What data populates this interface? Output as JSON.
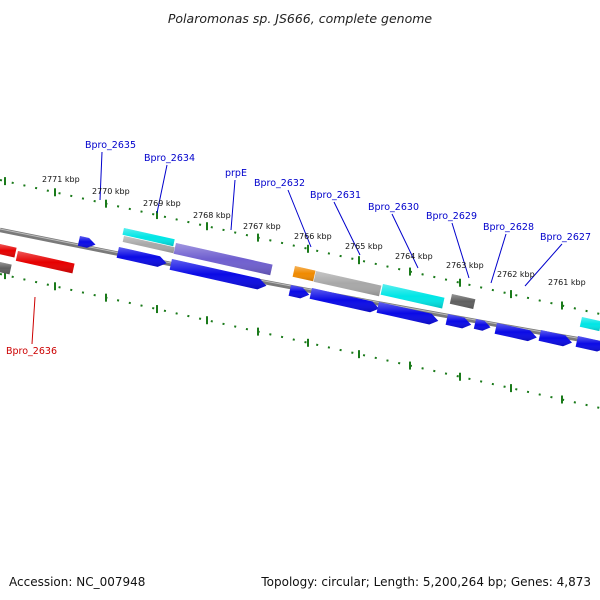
{
  "map": {
    "title": "Polaromonas sp. JS666, complete genome",
    "accession_text": "Accession: NC_007948",
    "summary_text": "Topology: circular; Length: 5,200,264 bp; Genes: 4,873",
    "colors": {
      "label_blue": "#0000cc",
      "label_red": "#cc0000",
      "backbone": "#7f7f7f",
      "tick_green": "#1a7a1a",
      "gene_blue": "#0a0ae6",
      "gene_red": "#e60000",
      "gene_cyan": "#00e6e6",
      "gene_gray": "#a8a8a8",
      "gene_dark_gray": "#5f5f5f",
      "gene_purple": "#6f5fcf",
      "gene_orange": "#f08a00"
    },
    "tick_labels": [
      "2771 kbp",
      "2770 kbp",
      "2769 kbp",
      "2768 kbp",
      "2767 kbp",
      "2766 kbp",
      "2765 kbp",
      "2764 kbp",
      "2763 kbp",
      "2762 kbp",
      "2761 kbp"
    ],
    "gene_labels": [
      {
        "text": "Bpro_2635",
        "color": "blue"
      },
      {
        "text": "Bpro_2634",
        "color": "blue"
      },
      {
        "text": "prpE",
        "color": "blue"
      },
      {
        "text": "Bpro_2632",
        "color": "blue"
      },
      {
        "text": "Bpro_2631",
        "color": "blue"
      },
      {
        "text": "Bpro_2630",
        "color": "blue"
      },
      {
        "text": "Bpro_2629",
        "color": "blue"
      },
      {
        "text": "Bpro_2628",
        "color": "blue"
      },
      {
        "text": "Bpro_2627",
        "color": "blue"
      },
      {
        "text": "Bpro_2636",
        "color": "red"
      }
    ]
  }
}
